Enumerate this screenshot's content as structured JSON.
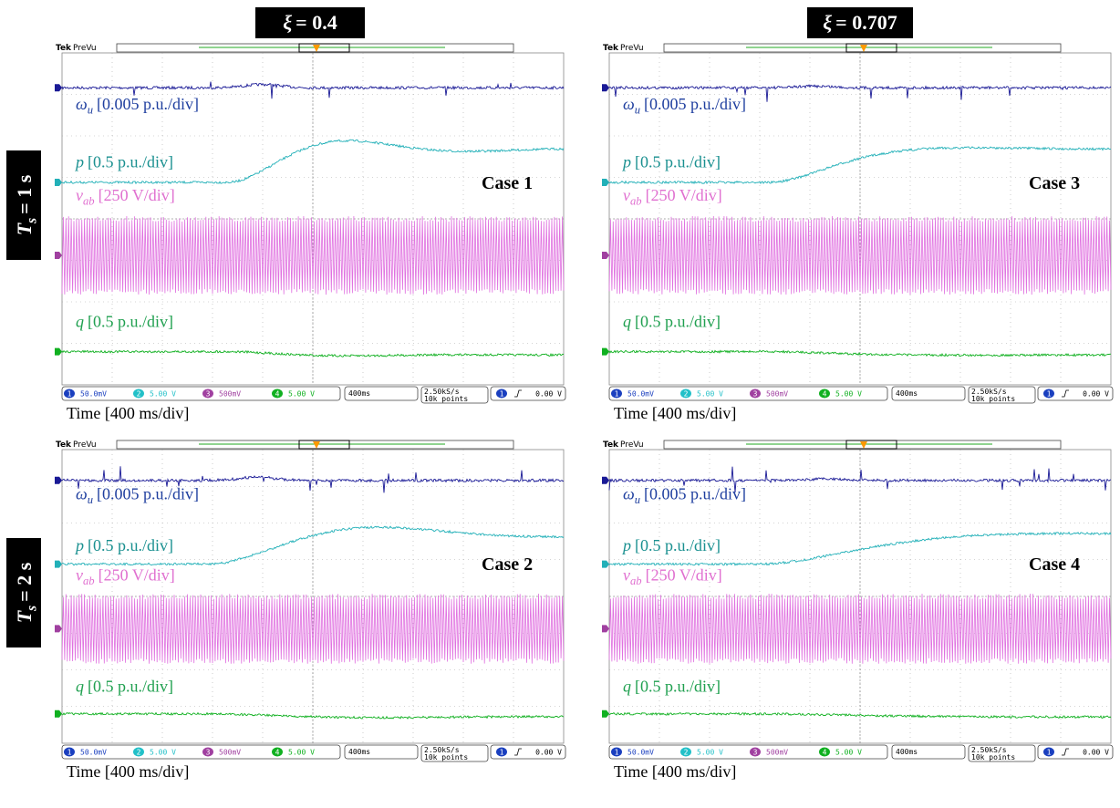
{
  "columns": [
    {
      "symbol": "ξ",
      "rest": "= 0.4"
    },
    {
      "symbol": "ξ",
      "rest": "= 0.707"
    }
  ],
  "rows": [
    {
      "symbol": "T",
      "sub": "s",
      "rest": "= 1 s"
    },
    {
      "symbol": "T",
      "sub": "s",
      "rest": "= 2 s"
    }
  ],
  "panels": [
    {
      "brand": "Tek",
      "mode": "PreVu",
      "case": "Case 1",
      "traces": [
        {
          "symbol": "ω",
          "sub": "u",
          "scale": "[0.005 p.u./div]"
        },
        {
          "symbol": "p",
          "scale": "[0.5 p.u./div]"
        },
        {
          "symbol": "v",
          "sub": "ab",
          "scale": "[250 V/div]"
        },
        {
          "symbol": "q",
          "scale": "[0.5 p.u./div]"
        }
      ],
      "channels": [
        {
          "id": "1",
          "setting": "50.0mV"
        },
        {
          "id": "2",
          "setting": "5.00 V"
        },
        {
          "id": "3",
          "setting": "500mV"
        },
        {
          "id": "4",
          "setting": "5.00 V"
        }
      ],
      "timebase": "400ms",
      "rate": "2.50kS/s",
      "points": "10k points",
      "trigger": {
        "channel": "1",
        "level": "0.00 V"
      },
      "xlabel": "Time [400 ms/div]"
    },
    {
      "brand": "Tek",
      "mode": "PreVu",
      "case": "Case 3",
      "traces": [
        {
          "symbol": "ω",
          "sub": "u",
          "scale": "[0.005 p.u./div]"
        },
        {
          "symbol": "p",
          "scale": "[0.5 p.u./div]"
        },
        {
          "symbol": "v",
          "sub": "ab",
          "scale": "[250 V/div]"
        },
        {
          "symbol": "q",
          "scale": "[0.5 p.u./div]"
        }
      ],
      "channels": [
        {
          "id": "1",
          "setting": "50.0mV"
        },
        {
          "id": "2",
          "setting": "5.00 V"
        },
        {
          "id": "3",
          "setting": "500mV"
        },
        {
          "id": "4",
          "setting": "5.00 V"
        }
      ],
      "timebase": "400ms",
      "rate": "2.50kS/s",
      "points": "10k points",
      "trigger": {
        "channel": "1",
        "level": "0.00 V"
      },
      "xlabel": "Time [400 ms/div]"
    },
    {
      "brand": "Tek",
      "mode": "PreVu",
      "case": "Case 2",
      "traces": [
        {
          "symbol": "ω",
          "sub": "u",
          "scale": "[0.005 p.u./div]"
        },
        {
          "symbol": "p",
          "scale": "[0.5 p.u./div]"
        },
        {
          "symbol": "v",
          "sub": "ab",
          "scale": "[250 V/div]"
        },
        {
          "symbol": "q",
          "scale": "[0.5 p.u./div]"
        }
      ],
      "channels": [
        {
          "id": "1",
          "setting": "50.0mV"
        },
        {
          "id": "2",
          "setting": "5.00 V"
        },
        {
          "id": "3",
          "setting": "500mV"
        },
        {
          "id": "4",
          "setting": "5.00 V"
        }
      ],
      "timebase": "400ms",
      "rate": "2.50kS/s",
      "points": "10k points",
      "trigger": {
        "channel": "1",
        "level": "0.00 V"
      },
      "xlabel": "Time [400 ms/div]"
    },
    {
      "brand": "Tek",
      "mode": "PreVu",
      "case": "Case 4",
      "traces": [
        {
          "symbol": "ω",
          "sub": "u",
          "scale": "[0.005 p.u./div]"
        },
        {
          "symbol": "p",
          "scale": "[0.5 p.u./div]"
        },
        {
          "symbol": "v",
          "sub": "ab",
          "scale": "[250 V/div]"
        },
        {
          "symbol": "q",
          "scale": "[0.5 p.u./div]"
        }
      ],
      "channels": [
        {
          "id": "1",
          "setting": "50.0mV"
        },
        {
          "id": "2",
          "setting": "5.00 V"
        },
        {
          "id": "3",
          "setting": "500mV"
        },
        {
          "id": "4",
          "setting": "5.00 V"
        }
      ],
      "timebase": "400ms",
      "rate": "2.50kS/s",
      "points": "10k points",
      "trigger": {
        "channel": "1",
        "level": "0.00 V"
      },
      "xlabel": "Time [400 ms/div]"
    }
  ]
}
